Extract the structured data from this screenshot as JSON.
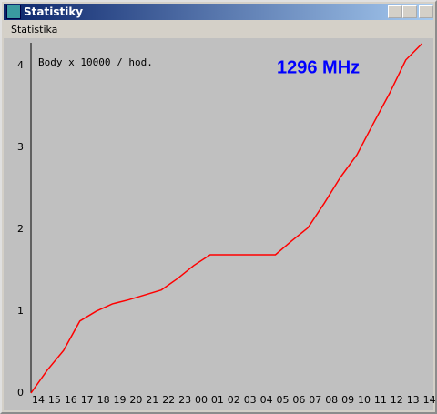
{
  "window": {
    "title": "Statistiky",
    "menu": [
      "Statistika"
    ]
  },
  "chart_data": {
    "type": "line",
    "annotations": [
      "Body x 10000 / hod.",
      "1296 MHz"
    ],
    "categories": [
      "14",
      "15",
      "16",
      "17",
      "18",
      "19",
      "20",
      "21",
      "22",
      "23",
      "00",
      "01",
      "02",
      "03",
      "04",
      "05",
      "06",
      "07",
      "08",
      "09",
      "10",
      "11",
      "12",
      "13",
      "14"
    ],
    "values": [
      0,
      0.28,
      0.52,
      0.88,
      1.0,
      1.09,
      1.14,
      1.2,
      1.26,
      1.4,
      1.56,
      1.69,
      1.69,
      1.69,
      1.69,
      1.69,
      1.86,
      2.02,
      2.32,
      2.64,
      2.91,
      3.29,
      3.66,
      4.07,
      4.27
    ],
    "color": "#ff0000",
    "ylim": [
      0,
      4.28
    ],
    "yticks": [
      0,
      1,
      2,
      3,
      4
    ]
  }
}
